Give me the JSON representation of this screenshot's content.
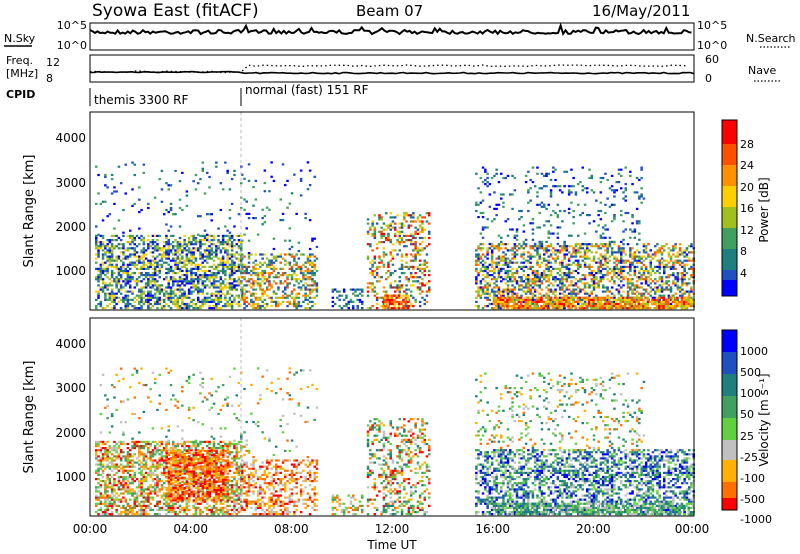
{
  "header": {
    "title": "Syowa East (fitACF)",
    "beam": "Beam 07",
    "date": "16/May/2011"
  },
  "top_panels": {
    "nsky_label": "N.Sky",
    "nsky_ticks": [
      "10^5",
      "10^0"
    ],
    "nsearch_label": "N.Search",
    "nsearch_ticks": [
      "10^5",
      "10^0"
    ],
    "freq_label_line1": "Freq.",
    "freq_label_line2": "[MHz]",
    "freq_ticks": [
      "12",
      "8"
    ],
    "nave_label": "Nave",
    "nave_ticks": [
      "60",
      "0"
    ],
    "cpid_label": "CPID",
    "cpid_segments": [
      {
        "label": "themis 3300 RF",
        "start_hour": 0,
        "end_hour": 6
      },
      {
        "label": "normal (fast) 151 RF",
        "start_hour": 6,
        "end_hour": 24
      }
    ]
  },
  "chart_data": [
    {
      "type": "heatmap",
      "name": "power",
      "xlabel": "",
      "ylabel": "Slant Range [km]",
      "xlim": [
        0,
        24
      ],
      "ylim": [
        180,
        4500
      ],
      "y_ticks": [
        "1000",
        "2000",
        "3000",
        "4000"
      ],
      "colorbar_label": "Power [dB]",
      "colorbar_ticks": [
        "4",
        "8",
        "12",
        "16",
        "20",
        "24",
        "28"
      ],
      "colorbar_range": [
        0,
        30
      ],
      "colors": [
        "#0000ff",
        "#2050c0",
        "#1f7f7f",
        "#40a060",
        "#a0c020",
        "#ffd000",
        "#ff9000",
        "#ff5000",
        "#ff0000"
      ]
    },
    {
      "type": "heatmap",
      "name": "velocity",
      "xlabel": "Time UT",
      "ylabel": "Slant Range [km]",
      "xlim": [
        0,
        24
      ],
      "ylim": [
        180,
        4500
      ],
      "x_ticks": [
        "00:00",
        "04:00",
        "08:00",
        "12:00",
        "16:00",
        "20:00",
        "00:00"
      ],
      "y_ticks": [
        "1000",
        "2000",
        "3000",
        "4000"
      ],
      "colorbar_label": "Velocity [m s⁻¹]",
      "colorbar_ticks": [
        "1000",
        "500",
        "100",
        "50",
        "25",
        "-25",
        "-100",
        "-500",
        "-1000"
      ],
      "colors": [
        "#0000ff",
        "#2050c0",
        "#1f7f7f",
        "#40a060",
        "#60d040",
        "#c0c0c0",
        "#ffb000",
        "#ff7000",
        "#ff0000"
      ]
    }
  ]
}
